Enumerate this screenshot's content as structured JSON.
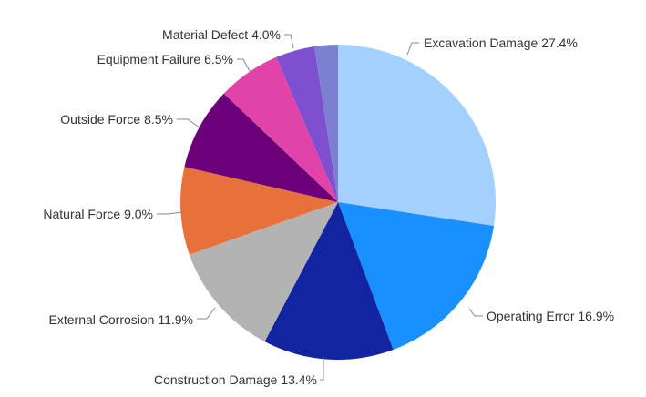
{
  "chart_data": {
    "type": "pie",
    "slices": [
      {
        "label": "Excavation Damage 27.4%",
        "value": 27.4,
        "color": "#a4d0ff"
      },
      {
        "label": "Operating Error 16.9%",
        "value": 16.9,
        "color": "#1890ff"
      },
      {
        "label": "Construction Damage 13.4%",
        "value": 13.4,
        "color": "#1224a0"
      },
      {
        "label": "External Corrosion 11.9%",
        "value": 11.9,
        "color": "#b3b3b3"
      },
      {
        "label": "Natural Force 9.0%",
        "value": 9.0,
        "color": "#e8703a"
      },
      {
        "label": "Outside Force 8.5%",
        "value": 8.5,
        "color": "#6b0078"
      },
      {
        "label": "Equipment Failure 6.5%",
        "value": 6.5,
        "color": "#e044a8"
      },
      {
        "label": "Material Defect 4.0%",
        "value": 4.0,
        "color": "#7e4fcf"
      },
      {
        "label": "",
        "value": 2.4,
        "color": "#7b80d0"
      }
    ],
    "start": "top",
    "direction": "clockwise",
    "legend": "none"
  }
}
